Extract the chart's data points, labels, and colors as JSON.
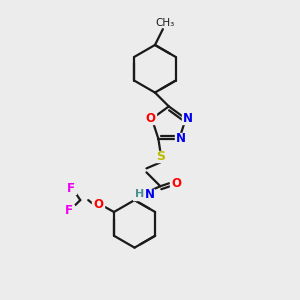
{
  "background_color": "#ececec",
  "bond_color": "#1a1a1a",
  "atom_colors": {
    "N": "#0000ee",
    "O": "#ff0000",
    "S": "#bbbb00",
    "F": "#ee00ee",
    "H": "#4a9090",
    "C": "#1a1a1a"
  },
  "figsize": [
    3.0,
    3.0
  ],
  "dpi": 100
}
